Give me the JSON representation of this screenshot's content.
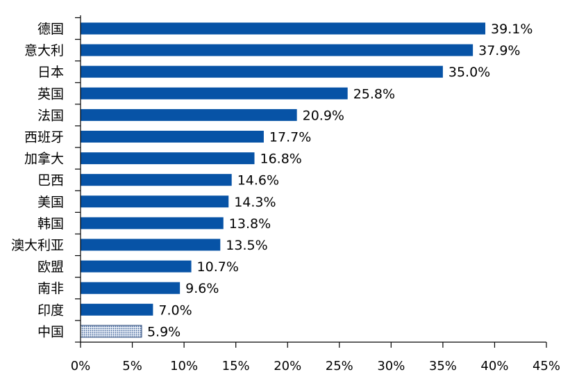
{
  "chart_data": {
    "type": "bar",
    "orientation": "horizontal",
    "title": "",
    "xlabel": "",
    "ylabel": "",
    "categories": [
      "德国",
      "意大利",
      "日本",
      "英国",
      "法国",
      "西班牙",
      "加拿大",
      "巴西",
      "美国",
      "韩国",
      "澳大利亚",
      "欧盟",
      "南非",
      "印度",
      "中国"
    ],
    "values": [
      39.1,
      37.9,
      35.0,
      25.8,
      20.9,
      17.7,
      16.8,
      14.6,
      14.3,
      13.8,
      13.5,
      10.7,
      9.6,
      7.0,
      5.9
    ],
    "value_labels": [
      "39.1%",
      "37.9%",
      "35.0%",
      "25.8%",
      "20.9%",
      "17.7%",
      "16.8%",
      "14.6%",
      "14.3%",
      "13.8%",
      "13.5%",
      "10.7%",
      "9.6%",
      "7.0%",
      "5.9%"
    ],
    "xlim": [
      0,
      45
    ],
    "xticks": [
      0,
      5,
      10,
      15,
      20,
      25,
      30,
      35,
      40,
      45
    ],
    "xtick_labels": [
      "0%",
      "5%",
      "10%",
      "15%",
      "20%",
      "25%",
      "30%",
      "35%",
      "40%",
      "45%"
    ],
    "grid": false,
    "legend": "none",
    "bar_color": "#0753A6",
    "highlight": {
      "category": "中国",
      "pattern": "dotted",
      "fill_color": "#9FB6D6",
      "stroke_color": "#1f3f73"
    }
  }
}
